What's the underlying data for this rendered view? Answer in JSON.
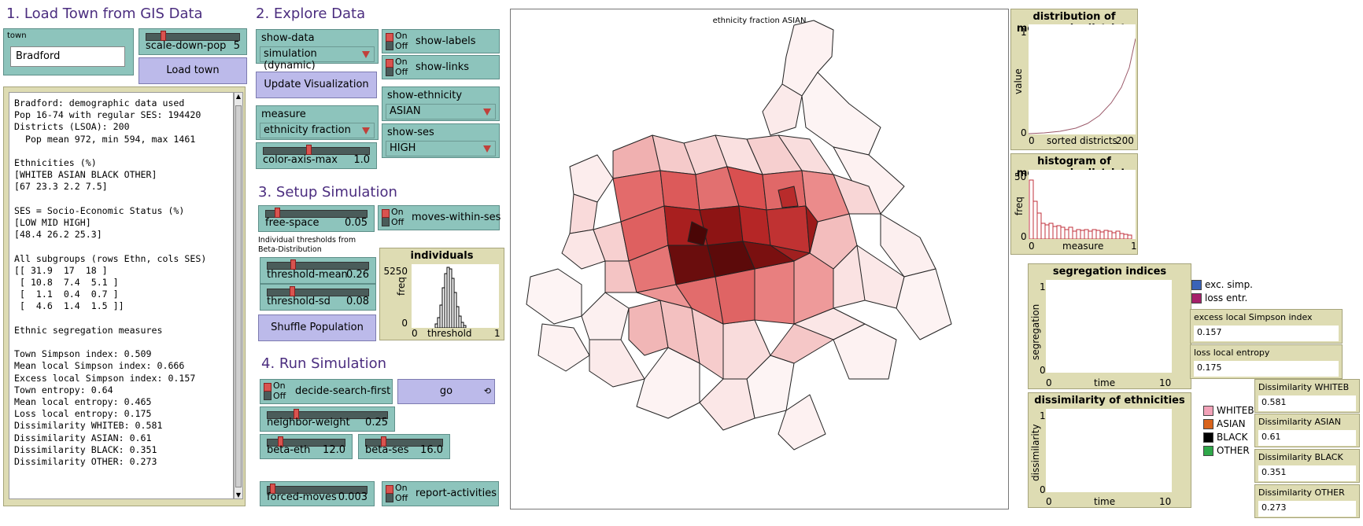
{
  "sections": {
    "s1": "1. Load Town from GIS Data",
    "s2": "2. Explore Data",
    "s3": "3. Setup Simulation",
    "s4": "4. Run Simulation"
  },
  "town_input": {
    "label": "town",
    "value": "Bradford"
  },
  "scale_down_pop": {
    "label": "scale-down-pop",
    "value": "5",
    "fraction": 0.2
  },
  "load_town_button": "Load town",
  "output_text": "Bradford: demographic data used\nPop 16-74 with regular SES: 194420\nDistricts (LSOA): 200\n  Pop mean 972, min 594, max 1461\n\nEthnicities (%)\n[WHITEB ASIAN BLACK OTHER]\n[67 23.3 2.2 7.5]\n\nSES = Socio-Economic Status (%)\n[LOW MID HIGH]\n[48.4 26.2 25.3]\n\nAll subgroups (rows Ethn, cols SES)\n[[ 31.9  17  18 ]\n [ 10.8  7.4  5.1 ]\n [  1.1  0.4  0.7 ]\n [  4.6  1.4  1.5 ]]\n\nEthnic segregation measures\n\nTown Simpson index: 0.509\nMean local Simpson index: 0.666\nExcess local Simpson index: 0.157\nTown entropy: 0.64\nMean local entropy: 0.465\nLoss local entropy: 0.175\nDissimilarity WHITEB: 0.581\nDissimilarity ASIAN: 0.61\nDissimilarity BLACK: 0.351\nDissimilarity OTHER: 0.273",
  "explore": {
    "show_data": {
      "label": "show-data",
      "value": "simulation (dynamic)"
    },
    "show_labels": {
      "label": "show-labels",
      "on": "On",
      "off": "Off"
    },
    "show_links": {
      "label": "show-links",
      "on": "On",
      "off": "Off"
    },
    "update_button": "Update Visualization",
    "show_ethnicity": {
      "label": "show-ethnicity",
      "value": "ASIAN"
    },
    "measure": {
      "label": "measure",
      "value": "ethnicity fraction"
    },
    "show_ses": {
      "label": "show-ses",
      "value": "HIGH"
    },
    "color_axis_max": {
      "label": "color-axis-max",
      "value": "1.0",
      "fraction": 0.5
    }
  },
  "setup": {
    "free_space": {
      "label": "free-space",
      "value": "0.05",
      "fraction": 0.1
    },
    "moves_within_ses": {
      "label": "moves-within-ses",
      "on": "On",
      "off": "Off"
    },
    "note": "Individual thresholds from\nBeta-Distribution",
    "threshold_mean": {
      "label": "threshold-mean",
      "value": "0.26",
      "fraction": 0.26
    },
    "threshold_sd": {
      "label": "threshold-sd",
      "value": "0.08",
      "fraction": 0.25
    },
    "shuffle_button": "Shuffle Population",
    "individuals_plot": {
      "title": "individuals",
      "ylabel": "freq",
      "xlabel": "threshold",
      "ymax": "5250",
      "ymin": "0",
      "xmin": "0",
      "xmax": "1"
    }
  },
  "run": {
    "decide_search_first": {
      "label": "decide-search-first",
      "on": "On",
      "off": "Off"
    },
    "go_button": "go",
    "neighbor_weight": {
      "label": "neighbor-weight",
      "value": "0.25",
      "fraction": 0.25
    },
    "beta_eth": {
      "label": "beta-eth",
      "value": "12.0",
      "fraction": 0.12
    },
    "beta_ses": {
      "label": "beta-ses",
      "value": "16.0",
      "fraction": 0.16
    },
    "forced_moves": {
      "label": "forced-moves",
      "value": "0.003",
      "fraction": 0.03
    },
    "report_activities": {
      "label": "report-activities",
      "on": "On",
      "off": "Off"
    }
  },
  "map": {
    "title": "ethnicity fraction ASIAN"
  },
  "plots": {
    "distribution": {
      "title": "distribution of measure in districts",
      "ylabel": "value",
      "xlabel": "sorted districts",
      "ymax": "1",
      "ymin": "0",
      "xmin": "0",
      "xmax": "200"
    },
    "histogram": {
      "title": "histogram of measure in districts",
      "ylabel": "freq",
      "xlabel": "measure",
      "ymax": "50",
      "ymin": "0",
      "xmin": "0",
      "xmax": "1"
    },
    "segregation": {
      "title": "segregation indices",
      "ylabel": "segregation",
      "xlabel": "time",
      "ymax": "1",
      "ymin": "0",
      "xmin": "0",
      "xmax": "10",
      "legend": [
        {
          "name": "exc. simp.",
          "color": "#3a63b8"
        },
        {
          "name": "loss entr.",
          "color": "#a6206a"
        }
      ]
    },
    "dissimilarity": {
      "title": "dissimilarity of ethnicities",
      "ylabel": "dissimilarity",
      "xlabel": "time",
      "ymax": "1",
      "ymin": "0",
      "xmin": "0",
      "xmax": "10",
      "legend": [
        {
          "name": "WHITEB",
          "color": "#f2a2b8"
        },
        {
          "name": "ASIAN",
          "color": "#d9641c"
        },
        {
          "name": "BLACK",
          "color": "#000000"
        },
        {
          "name": "OTHER",
          "color": "#2fa84a"
        }
      ]
    }
  },
  "monitors": {
    "excess_simpson": {
      "label": "excess local Simpson index",
      "value": "0.157"
    },
    "loss_entropy": {
      "label": "loss local entropy",
      "value": "0.175"
    },
    "dis_whiteb": {
      "label": "Dissimilarity WHITEB",
      "value": "0.581"
    },
    "dis_asian": {
      "label": "Dissimilarity ASIAN",
      "value": "0.61"
    },
    "dis_black": {
      "label": "Dissimilarity BLACK",
      "value": "0.351"
    },
    "dis_other": {
      "label": "Dissimilarity OTHER",
      "value": "0.273"
    }
  },
  "colors": {
    "slider": "#8dc4bc",
    "button": "#bcbaea",
    "plot": "#dedcb3",
    "header": "#4b2d7f",
    "map_dark": "#5c0a0a",
    "map_light": "#fbeeee"
  }
}
